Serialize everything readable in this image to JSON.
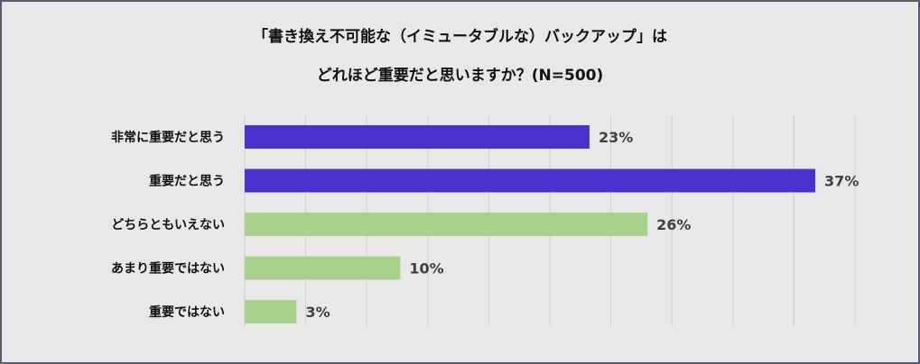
{
  "chart_data": {
    "type": "bar",
    "orientation": "horizontal",
    "title_line1": "「書き換え不可能な（イミュータブルな）バックアップ」は",
    "title_line2": "どれほど重要だと思いますか？(N=500)",
    "categories": [
      "非常に重要だと思う",
      "重要だと思う",
      "どちらともいえない",
      "あまり重要ではない",
      "重要ではない"
    ],
    "values": [
      22.6,
      37.4,
      26.4,
      10.2,
      3.4
    ],
    "labels": [
      "23%",
      "37%",
      "26%",
      "10%",
      "3%"
    ],
    "colors": [
      "#4b32cf",
      "#4b32cf",
      "#a8d18d",
      "#a8d18d",
      "#a8d18d"
    ],
    "xlim": [
      0,
      40
    ],
    "grid": true
  }
}
